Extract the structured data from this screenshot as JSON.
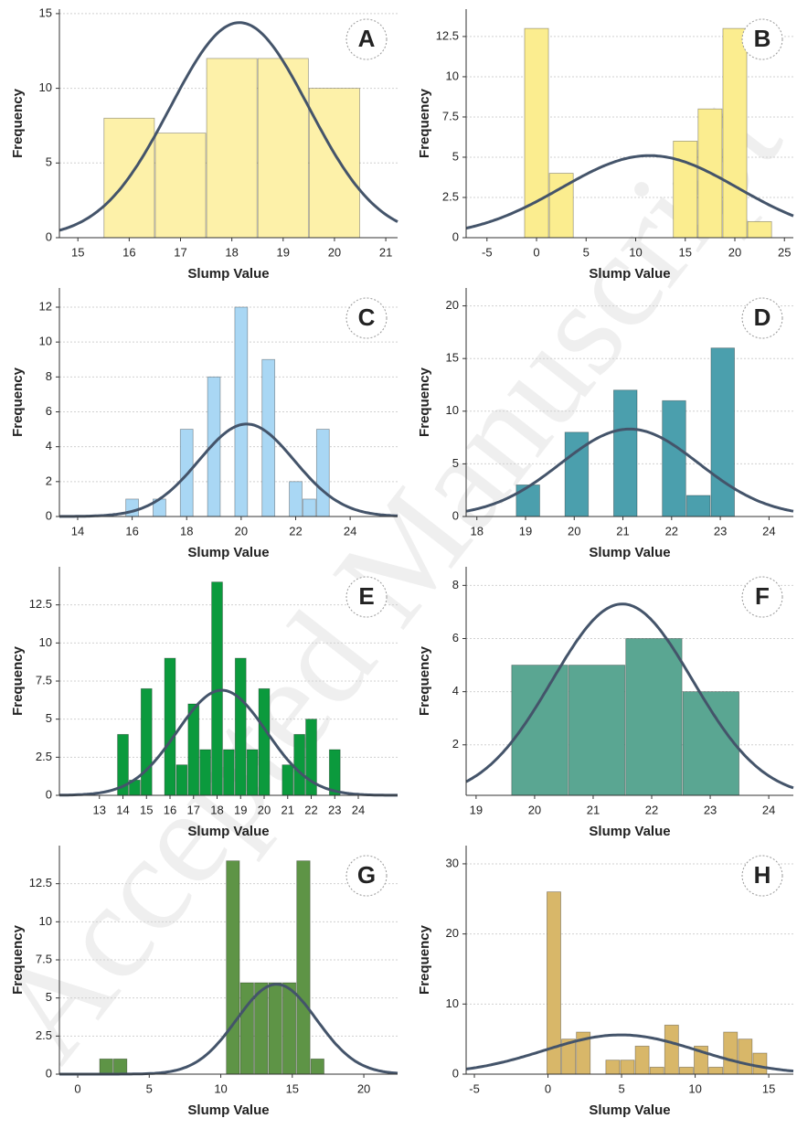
{
  "watermark": "Accepted Manuscript",
  "chart_data": [
    {
      "type": "histogram",
      "panel_label": "A",
      "xlabel": "Slump Value",
      "ylabel": "Frequency",
      "bins": [
        15.5,
        16.5,
        17.5,
        18.5,
        19.5,
        20.5
      ],
      "counts": [
        8,
        7,
        12,
        12,
        10
      ],
      "color": "#fdf1a9",
      "fit": {
        "mean": 18.15,
        "sd": 1.35,
        "peak": 14.4
      },
      "fit_color": "#44546a",
      "xlim": [
        14.64,
        21.23
      ],
      "ylim": [
        0,
        15.3
      ],
      "xticks": [
        15,
        16,
        17,
        18,
        19,
        20,
        21
      ],
      "yticks": [
        0,
        5,
        10,
        15
      ],
      "grid": true
    },
    {
      "type": "histogram",
      "panel_label": "B",
      "xlabel": "Slump Value",
      "ylabel": "Frequency",
      "bins": [
        -1.25,
        1.25,
        3.75,
        6.25,
        8.75,
        11.25,
        13.75,
        16.25,
        18.75,
        21.25,
        23.75
      ],
      "counts": [
        13,
        4,
        0,
        0,
        0,
        0,
        6,
        8,
        13,
        1
      ],
      "color": "#fbed8f",
      "fit": {
        "mean": 11.4,
        "sd": 8.9,
        "peak": 5.1
      },
      "fit_color": "#44546a",
      "xlim": [
        -7.1,
        25.9
      ],
      "ylim": [
        0,
        14.2
      ],
      "xticks": [
        -5,
        0,
        5,
        10,
        15,
        20,
        25
      ],
      "yticks": [
        0,
        2.5,
        5,
        7.5,
        10,
        12.5
      ],
      "grid": true
    },
    {
      "type": "histogram",
      "panel_label": "C",
      "xlabel": "Slump Value",
      "ylabel": "Frequency",
      "bins": [
        15.75,
        16.25,
        16.75,
        17.25,
        17.75,
        18.25,
        18.75,
        19.25,
        19.75,
        20.25,
        20.75,
        21.25,
        21.75,
        22.25,
        22.75,
        23.25
      ],
      "counts": [
        1,
        0,
        1,
        0,
        5,
        0,
        8,
        0,
        12,
        0,
        9,
        0,
        2,
        1,
        5
      ],
      "color": "#a9d7f4",
      "fit": {
        "mean": 20.2,
        "sd": 1.75,
        "peak": 5.3
      },
      "fit_color": "#44546a",
      "xlim": [
        13.33,
        25.74
      ],
      "ylim": [
        0,
        13.1
      ],
      "xticks": [
        14,
        16,
        18,
        20,
        22,
        24
      ],
      "yticks": [
        0,
        2,
        4,
        6,
        8,
        10,
        12
      ],
      "grid": true
    },
    {
      "type": "histogram",
      "panel_label": "D",
      "xlabel": "Slump Value",
      "ylabel": "Frequency",
      "bins": [
        18.8,
        19.3,
        19.8,
        20.3,
        20.8,
        21.3,
        21.8,
        22.3,
        22.8,
        23.3
      ],
      "counts": [
        3,
        0,
        8,
        0,
        12,
        0,
        11,
        2,
        16
      ],
      "color": "#4b9fad",
      "fit": {
        "mean": 21.14,
        "sd": 1.42,
        "peak": 8.3
      },
      "fit_color": "#44546a",
      "xlim": [
        17.78,
        24.5
      ],
      "ylim": [
        0,
        21.7
      ],
      "xticks": [
        18,
        19,
        20,
        21,
        22,
        23,
        24
      ],
      "yticks": [
        0,
        5,
        10,
        15,
        20
      ],
      "grid": true
    },
    {
      "type": "histogram",
      "panel_label": "E",
      "xlabel": "Slump Value",
      "ylabel": "Frequency",
      "bins": [
        13.75,
        14.25,
        14.75,
        15.25,
        15.75,
        16.25,
        16.75,
        17.25,
        17.75,
        18.25,
        18.75,
        19.25,
        19.75,
        20.25,
        20.75,
        21.25,
        21.75,
        22.25,
        22.75,
        23.25
      ],
      "counts": [
        4,
        1,
        7,
        0,
        9,
        2,
        6,
        3,
        14,
        3,
        9,
        3,
        7,
        0,
        2,
        4,
        5,
        0,
        3
      ],
      "color": "#0b9a3d",
      "fit": {
        "mean": 18.2,
        "sd": 1.9,
        "peak": 6.9
      },
      "fit_color": "#44546a",
      "xlim": [
        11.3,
        25.67
      ],
      "ylim": [
        0,
        15
      ],
      "xticks": [
        13,
        14,
        15,
        16,
        17,
        18,
        19,
        20,
        21,
        22,
        23,
        24
      ],
      "yticks": [
        0,
        2.5,
        5,
        7.5,
        10,
        12.5
      ],
      "grid": true
    },
    {
      "type": "histogram",
      "panel_label": "F",
      "xlabel": "Slump Value",
      "ylabel": "Frequency",
      "bins": [
        19.6,
        20.575,
        21.55,
        22.525,
        23.5
      ],
      "counts": [
        5,
        5,
        6,
        4
      ],
      "color": "#5aa692",
      "fit": {
        "mean": 21.5,
        "sd": 1.2,
        "peak": 7.3
      },
      "fit_color": "#44546a",
      "xlim": [
        18.83,
        24.42
      ],
      "ylim": [
        0.1,
        8.7
      ],
      "xticks": [
        19,
        20,
        21,
        22,
        23,
        24
      ],
      "yticks": [
        2,
        4,
        6,
        8
      ],
      "grid": true
    },
    {
      "type": "histogram",
      "panel_label": "G",
      "xlabel": "Slump Value",
      "ylabel": "Frequency",
      "bins": [
        1.5,
        2.48,
        3.47,
        4.45,
        5.44,
        6.42,
        7.41,
        8.39,
        9.38,
        10.36,
        11.34,
        12.33,
        13.31,
        14.3,
        15.28,
        16.27,
        17.25
      ],
      "counts": [
        1,
        1,
        0,
        0,
        0,
        0,
        0,
        0,
        0,
        14,
        6,
        6,
        6,
        6,
        14,
        1
      ],
      "color": "#5e9446",
      "fit": {
        "mean": 13.9,
        "sd": 2.8,
        "peak": 5.9
      },
      "fit_color": "#44546a",
      "xlim": [
        -1.28,
        22.36
      ],
      "ylim": [
        0,
        15
      ],
      "xticks": [
        0,
        5,
        10,
        15,
        20
      ],
      "yticks": [
        0,
        2.5,
        5,
        7.5,
        10,
        12.5
      ],
      "grid": true
    },
    {
      "type": "histogram",
      "panel_label": "H",
      "xlabel": "Slump Value",
      "ylabel": "Frequency",
      "bins": [
        -0.1,
        0.9,
        1.9,
        2.9,
        3.9,
        4.9,
        5.9,
        6.9,
        7.9,
        8.9,
        9.9,
        10.9,
        11.9,
        12.9,
        13.9,
        14.9
      ],
      "counts": [
        26,
        5,
        6,
        0,
        2,
        2,
        4,
        1,
        7,
        1,
        4,
        1,
        6,
        5,
        3
      ],
      "color": "#d8b769",
      "fit": {
        "mean": 4.95,
        "sd": 5.2,
        "peak": 5.6
      },
      "fit_color": "#44546a",
      "xlim": [
        -5.56,
        16.67
      ],
      "ylim": [
        0,
        32.6
      ],
      "xticks": [
        -5,
        0,
        5,
        10,
        15
      ],
      "yticks": [
        0,
        10,
        20,
        30
      ],
      "grid": true
    }
  ]
}
